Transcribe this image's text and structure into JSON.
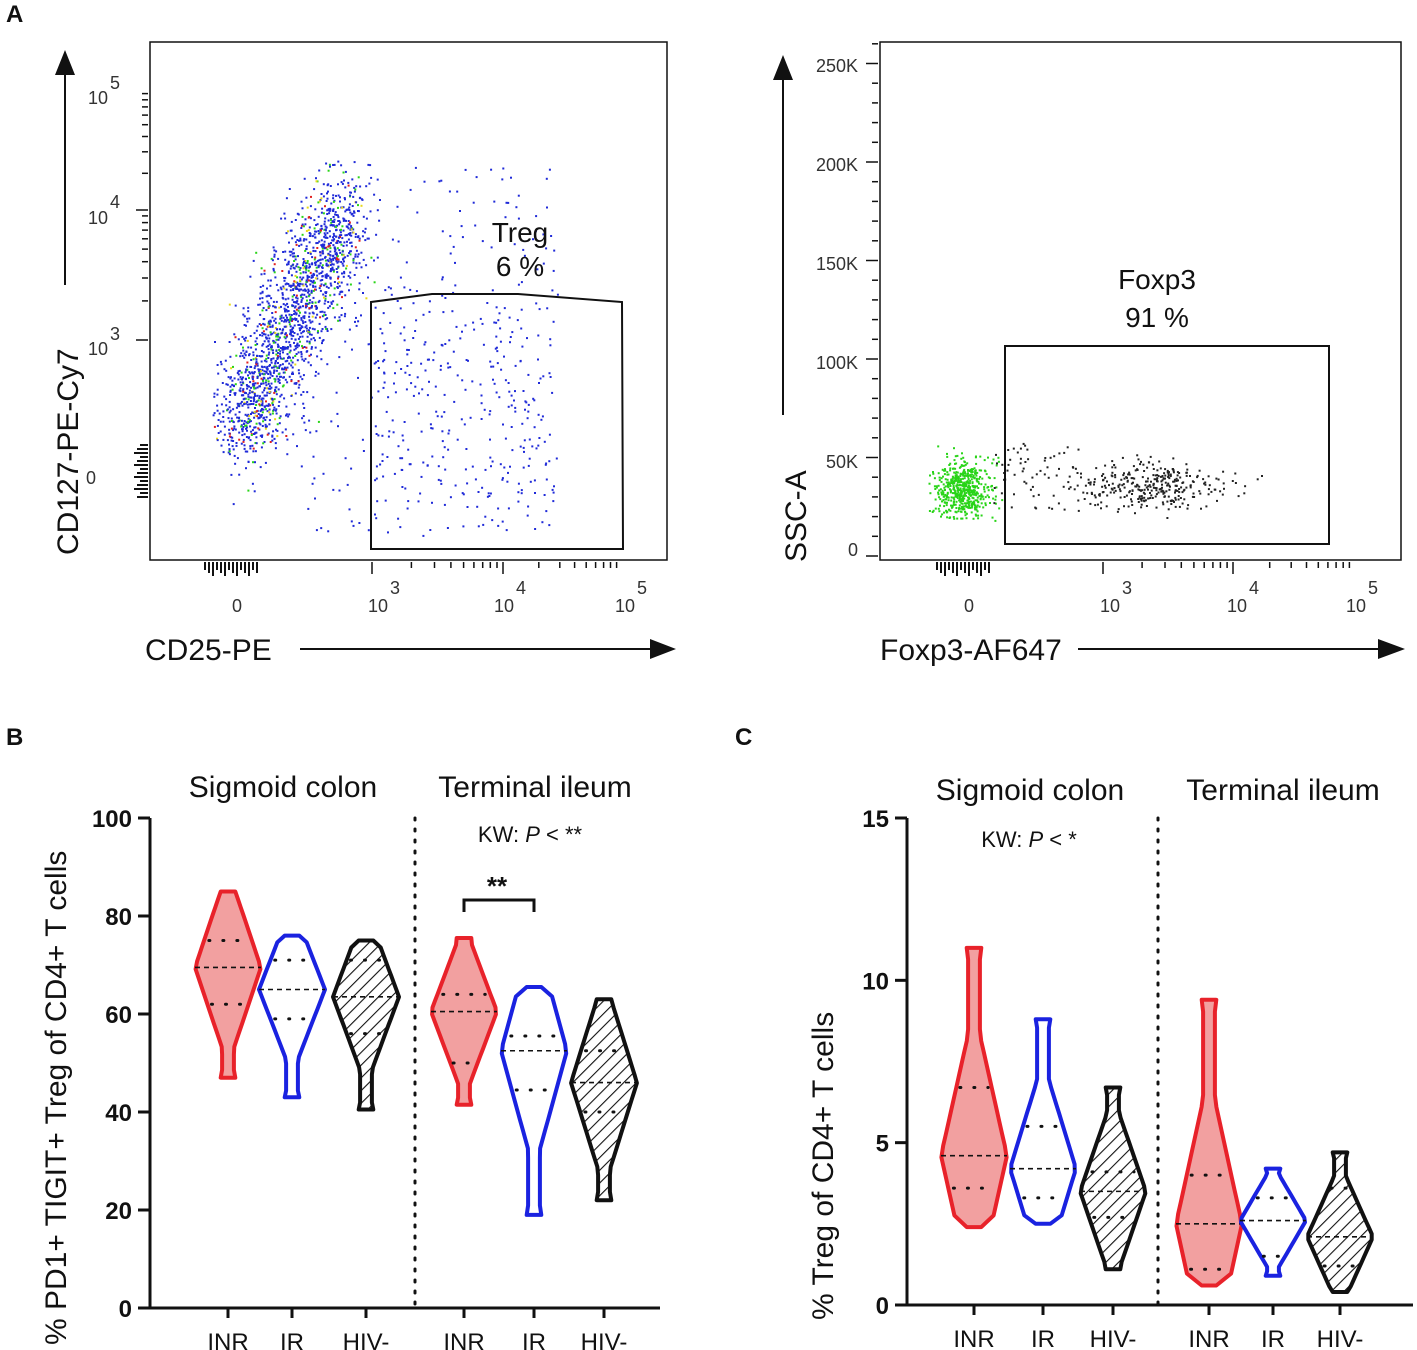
{
  "panels": {
    "A": "A",
    "B": "B",
    "C": "C"
  },
  "colors": {
    "INR": "#e8222a",
    "INR_fill": "#f2a0a0",
    "IR": "#1a22e0",
    "HIV": "#111111",
    "dots_blue": "#1f2ad8",
    "dots_green": "#29d418",
    "dots_black": "#222222"
  },
  "icons": [
    "arrow-up-icon",
    "arrow-right-icon"
  ],
  "flow1": {
    "ylabel": "CD127-PE-Cy7",
    "xlabel": "CD25-PE",
    "yticks": [
      {
        "label": "0"
      },
      {
        "label": "10",
        "exp": "3"
      },
      {
        "label": "10",
        "exp": "4"
      },
      {
        "label": "10",
        "exp": "5"
      }
    ],
    "xticks": [
      {
        "label": "0"
      },
      {
        "label": "10",
        "exp": "3"
      },
      {
        "label": "10",
        "exp": "4"
      },
      {
        "label": "10",
        "exp": "5"
      }
    ],
    "gate_name": "Treg",
    "gate_pct": "6 %"
  },
  "flow2": {
    "ylabel": "SSC-A",
    "xlabel": "Foxp3-AF647",
    "yticks": [
      "250K",
      "200K",
      "150K",
      "100K",
      "50K",
      "0"
    ],
    "xticks": [
      {
        "label": "0"
      },
      {
        "label": "10",
        "exp": "3"
      },
      {
        "label": "10",
        "exp": "4"
      },
      {
        "label": "10",
        "exp": "5"
      }
    ],
    "gate_name": "Foxp3",
    "gate_pct": "91 %"
  },
  "chart_data": [
    {
      "type": "violin",
      "panel": "B",
      "ylabel": "% PD1+ TIGIT+ Treg of CD4+ T cells",
      "ylim": [
        0,
        100
      ],
      "yticks": [
        0,
        20,
        40,
        60,
        80,
        100
      ],
      "groups": [
        "Sigmoid colon",
        "Terminal ileum"
      ],
      "categories": [
        "INR",
        "IR",
        "HIV-",
        "INR",
        "IR",
        "HIV-"
      ],
      "annotations": {
        "kw_prefix": "KW: ",
        "kw_p": "P",
        "kw_suffix": " < **",
        "pair_sig": "**"
      },
      "series": [
        {
          "name": "INR",
          "group": "Sigmoid colon",
          "min": 47,
          "max": 85,
          "median": 69.5,
          "q1": 62,
          "q3": 75
        },
        {
          "name": "IR",
          "group": "Sigmoid colon",
          "min": 43,
          "max": 76,
          "median": 65,
          "q1": 59,
          "q3": 71
        },
        {
          "name": "HIV-",
          "group": "Sigmoid colon",
          "min": 40.5,
          "max": 75,
          "median": 63.5,
          "q1": 56,
          "q3": 71
        },
        {
          "name": "INR",
          "group": "Terminal ileum",
          "min": 41.5,
          "max": 75.5,
          "median": 60.5,
          "q1": 50,
          "q3": 64
        },
        {
          "name": "IR",
          "group": "Terminal ileum",
          "min": 19,
          "max": 65.5,
          "median": 52.5,
          "q1": 44.5,
          "q3": 55.5
        },
        {
          "name": "HIV-",
          "group": "Terminal ileum",
          "min": 22,
          "max": 63,
          "median": 46,
          "q1": 40,
          "q3": 52.5
        }
      ]
    },
    {
      "type": "violin",
      "panel": "C",
      "ylabel": "% Treg of CD4+ T cells",
      "ylim": [
        0,
        15
      ],
      "yticks": [
        0,
        5,
        10,
        15
      ],
      "groups": [
        "Sigmoid colon",
        "Terminal ileum"
      ],
      "categories": [
        "INR",
        "IR",
        "HIV-",
        "INR",
        "IR",
        "HIV-"
      ],
      "annotations": {
        "kw_prefix": "KW: ",
        "kw_p": "P",
        "kw_suffix": " < *"
      },
      "series": [
        {
          "name": "INR",
          "group": "Sigmoid colon",
          "min": 2.4,
          "max": 11,
          "median": 4.6,
          "q1": 3.6,
          "q3": 6.7
        },
        {
          "name": "IR",
          "group": "Sigmoid colon",
          "min": 2.5,
          "max": 8.8,
          "median": 4.2,
          "q1": 3.3,
          "q3": 5.5
        },
        {
          "name": "HIV-",
          "group": "Sigmoid colon",
          "min": 1.1,
          "max": 6.7,
          "median": 3.5,
          "q1": 2.7,
          "q3": 4.1
        },
        {
          "name": "INR",
          "group": "Terminal ileum",
          "min": 0.6,
          "max": 9.4,
          "median": 2.5,
          "q1": 1.1,
          "q3": 4
        },
        {
          "name": "IR",
          "group": "Terminal ileum",
          "min": 0.9,
          "max": 4.2,
          "median": 2.6,
          "q1": 1.5,
          "q3": 3.3
        },
        {
          "name": "HIV-",
          "group": "Terminal ileum",
          "min": 0.4,
          "max": 4.7,
          "median": 2.1,
          "q1": 1.2,
          "q3": 3.6
        }
      ]
    }
  ]
}
